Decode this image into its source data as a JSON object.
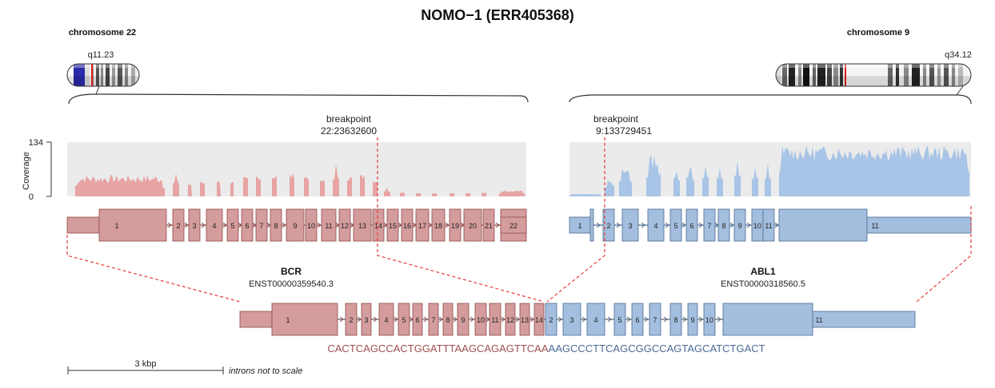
{
  "title": "NOMO−1 (ERR405368)",
  "partner1": {
    "chromosome_label": "chromosome 22",
    "band": "q11.23",
    "breakpoint_label": "breakpoint",
    "breakpoint_pos": "22:23632600",
    "gene": "BCR",
    "transcript": "ENST00000359540.3",
    "color": "#e8a4a4",
    "exon_color": "#d49c9c",
    "exon_stroke": "#8e4a4a",
    "exons": [
      "1",
      "2",
      "3",
      "4",
      "5",
      "6",
      "7",
      "8",
      "9",
      "10",
      "11",
      "12",
      "13",
      "14",
      "15",
      "16",
      "17",
      "18",
      "19",
      "20",
      "21",
      "22"
    ],
    "fused_exons": [
      "1",
      "2",
      "3",
      "4",
      "5",
      "6",
      "7",
      "8",
      "9",
      "10",
      "11",
      "12",
      "13",
      "14"
    ],
    "sequence": "CACTCAGCCACTGGATTTAAGCAGAGTTCAA"
  },
  "partner2": {
    "chromosome_label": "chromosome 9",
    "band": "q34.12",
    "breakpoint_label": "breakpoint",
    "breakpoint_pos": "9:133729451",
    "gene": "ABL1",
    "transcript": "ENST00000318560.5",
    "color": "#a8c4e6",
    "exon_color": "#a4bedf",
    "exon_stroke": "#4a6a8e",
    "exons": [
      "1",
      "2",
      "3",
      "4",
      "5",
      "6",
      "7",
      "8",
      "9",
      "10",
      "11"
    ],
    "fused_exons": [
      "2",
      "3",
      "4",
      "5",
      "6",
      "7",
      "8",
      "9",
      "10",
      "11"
    ],
    "sequence": "AAGCCCTTCAGCGGCCAGTAGCATCTGACT"
  },
  "coverage": {
    "axis_label": "Coverage",
    "max_label": "134",
    "min_label": "0"
  },
  "scale": {
    "label": "3 kbp",
    "note": "introns not to scale"
  },
  "colors": {
    "breakpoint_line": "#e83a3a",
    "coverage_bg": "#ebebeb",
    "sequence1": "#a05050",
    "sequence2": "#4a6a94"
  }
}
